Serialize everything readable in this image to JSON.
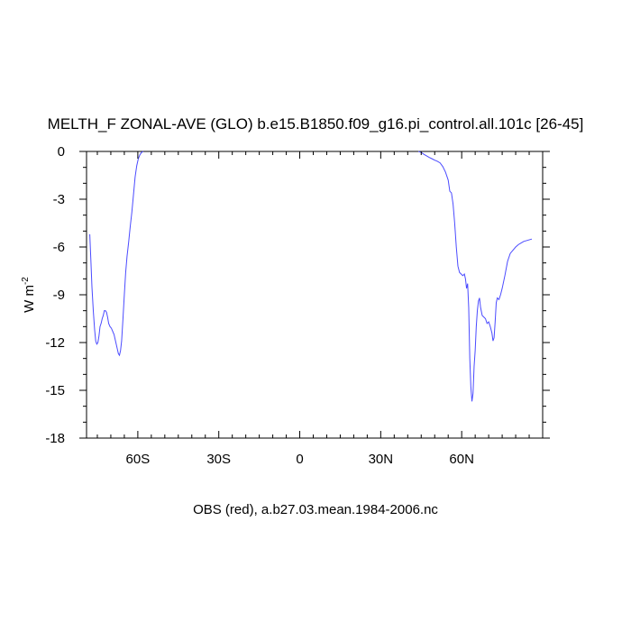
{
  "chart_data": {
    "type": "line",
    "title": "MELTH_F ZONAL-AVE (GLO) b.e15.B1850.f09_g16.pi_control.all.101c [26-45]",
    "xlabel": "OBS (red), a.b27.03.mean.1984-2006.nc",
    "ylabel": "W m",
    "ylabel_superscript": "-2",
    "xlim": [
      -79,
      90
    ],
    "ylim": [
      -18,
      0
    ],
    "x_ticks": [
      {
        "value": -60,
        "label": "60S"
      },
      {
        "value": -30,
        "label": "30S"
      },
      {
        "value": 0,
        "label": "0"
      },
      {
        "value": 30,
        "label": "30N"
      },
      {
        "value": 60,
        "label": "60N"
      }
    ],
    "y_ticks": [
      {
        "value": 0,
        "label": "0"
      },
      {
        "value": -3,
        "label": "-3"
      },
      {
        "value": -6,
        "label": "-6"
      },
      {
        "value": -9,
        "label": "-9"
      },
      {
        "value": -12,
        "label": "-12"
      },
      {
        "value": -15,
        "label": "-15"
      },
      {
        "value": -18,
        "label": "-18"
      }
    ],
    "grid": false,
    "series": [
      {
        "color": "#4b4bff",
        "points": [
          [
            -77.8,
            -5.2
          ],
          [
            -77.4,
            -6.8
          ],
          [
            -77.0,
            -8.5
          ],
          [
            -76.5,
            -10.0
          ],
          [
            -76.0,
            -11.2
          ],
          [
            -75.6,
            -11.9
          ],
          [
            -75.2,
            -12.1
          ],
          [
            -74.8,
            -12.0
          ],
          [
            -74.4,
            -11.6
          ],
          [
            -74.0,
            -11.0
          ],
          [
            -73.6,
            -10.8
          ],
          [
            -73.2,
            -10.5
          ],
          [
            -72.8,
            -10.3
          ],
          [
            -72.4,
            -10.0
          ],
          [
            -72.0,
            -10.0
          ],
          [
            -71.6,
            -10.1
          ],
          [
            -71.2,
            -10.4
          ],
          [
            -70.8,
            -10.8
          ],
          [
            -70.3,
            -11.0
          ],
          [
            -69.8,
            -11.1
          ],
          [
            -69.3,
            -11.3
          ],
          [
            -68.8,
            -11.5
          ],
          [
            -68.4,
            -11.8
          ],
          [
            -68.0,
            -12.1
          ],
          [
            -67.6,
            -12.4
          ],
          [
            -67.2,
            -12.7
          ],
          [
            -66.8,
            -12.8
          ],
          [
            -66.4,
            -12.5
          ],
          [
            -66.0,
            -11.9
          ],
          [
            -65.5,
            -10.5
          ],
          [
            -65.0,
            -9.0
          ],
          [
            -64.5,
            -7.6
          ],
          [
            -64.0,
            -6.6
          ],
          [
            -63.4,
            -5.7
          ],
          [
            -62.8,
            -4.7
          ],
          [
            -62.2,
            -3.8
          ],
          [
            -61.6,
            -2.7
          ],
          [
            -61.0,
            -1.6
          ],
          [
            -60.4,
            -0.9
          ],
          [
            -59.8,
            -0.45
          ],
          [
            -59.2,
            -0.2
          ],
          [
            -58.6,
            -0.06
          ],
          [
            -58.0,
            0.0
          ]
        ]
      },
      {
        "color": "#4b4bff",
        "points": [
          [
            44.0,
            0.0
          ],
          [
            45.0,
            -0.06
          ],
          [
            46.0,
            -0.18
          ],
          [
            47.0,
            -0.28
          ],
          [
            48.0,
            -0.38
          ],
          [
            49.0,
            -0.46
          ],
          [
            50.0,
            -0.55
          ],
          [
            51.0,
            -0.62
          ],
          [
            52.0,
            -0.72
          ],
          [
            53.0,
            -0.95
          ],
          [
            54.0,
            -1.3
          ],
          [
            55.0,
            -1.8
          ],
          [
            55.6,
            -2.5
          ],
          [
            56.2,
            -2.6
          ],
          [
            56.8,
            -3.3
          ],
          [
            57.4,
            -4.5
          ],
          [
            58.0,
            -6.0
          ],
          [
            58.6,
            -7.2
          ],
          [
            59.2,
            -7.6
          ],
          [
            59.8,
            -7.7
          ],
          [
            60.4,
            -7.8
          ],
          [
            61.0,
            -7.7
          ],
          [
            61.4,
            -8.0
          ],
          [
            61.8,
            -8.6
          ],
          [
            62.2,
            -8.3
          ],
          [
            62.6,
            -9.8
          ],
          [
            63.0,
            -13.0
          ],
          [
            63.4,
            -14.8
          ],
          [
            63.8,
            -15.7
          ],
          [
            64.2,
            -15.2
          ],
          [
            64.6,
            -13.5
          ],
          [
            65.0,
            -12.5
          ],
          [
            65.4,
            -11.0
          ],
          [
            65.8,
            -10.0
          ],
          [
            66.2,
            -9.4
          ],
          [
            66.6,
            -9.2
          ],
          [
            67.0,
            -9.8
          ],
          [
            67.6,
            -10.3
          ],
          [
            68.2,
            -10.4
          ],
          [
            68.8,
            -10.5
          ],
          [
            69.4,
            -10.8
          ],
          [
            70.0,
            -10.7
          ],
          [
            70.6,
            -11.0
          ],
          [
            71.2,
            -11.4
          ],
          [
            71.6,
            -11.9
          ],
          [
            72.0,
            -11.7
          ],
          [
            72.4,
            -10.7
          ],
          [
            72.8,
            -9.5
          ],
          [
            73.2,
            -9.2
          ],
          [
            73.8,
            -9.3
          ],
          [
            74.4,
            -9.0
          ],
          [
            75.0,
            -8.6
          ],
          [
            76.0,
            -7.8
          ],
          [
            77.0,
            -6.9
          ],
          [
            78.0,
            -6.4
          ],
          [
            79.0,
            -6.2
          ],
          [
            80.0,
            -6.0
          ],
          [
            81.0,
            -5.85
          ],
          [
            82.0,
            -5.75
          ],
          [
            83.0,
            -5.65
          ],
          [
            84.0,
            -5.6
          ],
          [
            85.0,
            -5.55
          ],
          [
            86.0,
            -5.5
          ]
        ]
      }
    ]
  }
}
